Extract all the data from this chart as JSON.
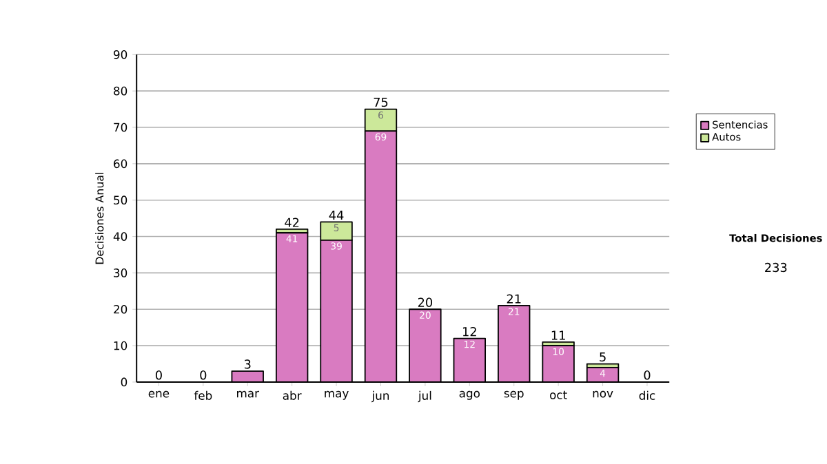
{
  "chart_data": {
    "type": "bar",
    "stacked": true,
    "ylabel": "Decisiones Anual",
    "categories": [
      "ene",
      "feb",
      "mar",
      "abr",
      "may",
      "jun",
      "jul",
      "ago",
      "sep",
      "oct",
      "nov",
      "dic"
    ],
    "series": [
      {
        "name": "Sentencias",
        "color": "#d97bc1",
        "values": [
          0,
          0,
          3,
          41,
          39,
          69,
          20,
          12,
          21,
          10,
          4,
          0
        ],
        "value_labels": [
          null,
          null,
          null,
          "41",
          "39",
          "69",
          "20",
          "12",
          "21",
          "10",
          "4",
          null
        ]
      },
      {
        "name": "Autos",
        "color": "#cce89a",
        "values": [
          0,
          0,
          0,
          1,
          5,
          6,
          0,
          0,
          0,
          1,
          1,
          0
        ],
        "value_labels": [
          null,
          null,
          null,
          null,
          "5",
          "6",
          null,
          null,
          null,
          null,
          null,
          null
        ]
      }
    ],
    "totals": [
      "0",
      "0",
      "3",
      "42",
      "44",
      "75",
      "20",
      "12",
      "21",
      "11",
      "5",
      "0"
    ],
    "ylim": [
      0,
      90
    ],
    "yticks": [
      0,
      10,
      20,
      30,
      40,
      50,
      60,
      70,
      80,
      90
    ],
    "grid": "y",
    "legend": "right",
    "annotations": [
      "Total Decisiones",
      "233"
    ]
  }
}
